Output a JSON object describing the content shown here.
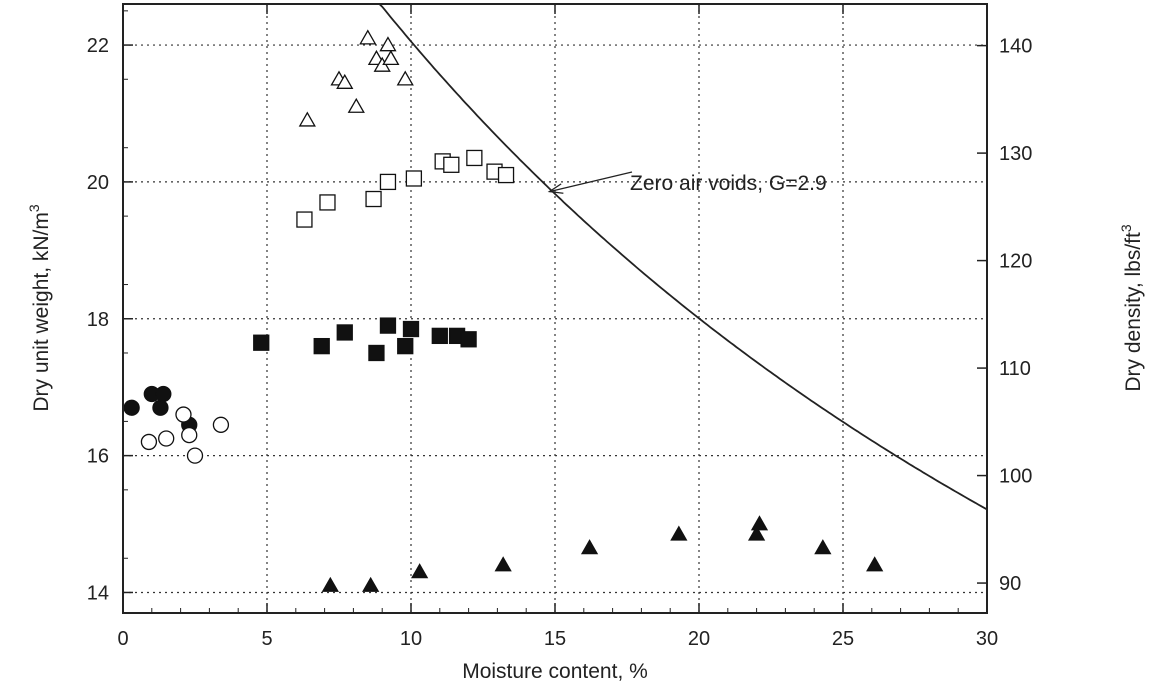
{
  "chart_data": {
    "type": "scatter",
    "title": "",
    "xlabel": "Moisture content, %",
    "ylabel_base": "Dry unit weight, kN/m",
    "ylabel_sup": "3",
    "y2label_base": "Dry density, lbs/ft",
    "y2label_sup": "3",
    "xlim": [
      0,
      30
    ],
    "ylim": [
      13.7,
      22.6
    ],
    "x_ticks": [
      0,
      5,
      10,
      15,
      20,
      25,
      30
    ],
    "y_ticks": [
      14,
      16,
      18,
      20,
      22
    ],
    "y2_ticks": [
      90,
      100,
      110,
      120,
      130,
      140
    ],
    "y2_conversion_factor": 6.366,
    "grid": true,
    "annotation": "Zero air voids, G=2.9",
    "annotation_arrow_target": [
      14.6,
      19.8
    ],
    "zav_curve": {
      "specific_gravity": 2.9,
      "unit_weight_water": 9.81,
      "x_range": [
        8.4,
        30
      ]
    },
    "series": [
      {
        "marker": "open-triangle",
        "points": [
          [
            6.4,
            20.9
          ],
          [
            7.5,
            21.5
          ],
          [
            7.7,
            21.45
          ],
          [
            8.1,
            21.1
          ],
          [
            8.5,
            22.1
          ],
          [
            8.8,
            21.8
          ],
          [
            9.0,
            21.7
          ],
          [
            9.2,
            22.0
          ],
          [
            9.3,
            21.8
          ],
          [
            9.8,
            21.5
          ]
        ]
      },
      {
        "marker": "open-square",
        "points": [
          [
            6.3,
            19.45
          ],
          [
            7.1,
            19.7
          ],
          [
            8.7,
            19.75
          ],
          [
            9.2,
            20.0
          ],
          [
            10.1,
            20.05
          ],
          [
            11.1,
            20.3
          ],
          [
            11.4,
            20.25
          ],
          [
            12.2,
            20.35
          ],
          [
            12.9,
            20.15
          ],
          [
            13.3,
            20.1
          ]
        ]
      },
      {
        "marker": "filled-square",
        "points": [
          [
            4.8,
            17.65
          ],
          [
            6.9,
            17.6
          ],
          [
            7.7,
            17.8
          ],
          [
            8.8,
            17.5
          ],
          [
            9.2,
            17.9
          ],
          [
            9.8,
            17.6
          ],
          [
            10.0,
            17.85
          ],
          [
            11.0,
            17.75
          ],
          [
            11.6,
            17.75
          ],
          [
            12.0,
            17.7
          ]
        ]
      },
      {
        "marker": "filled-circle",
        "points": [
          [
            0.3,
            16.7
          ],
          [
            1.0,
            16.9
          ],
          [
            1.3,
            16.7
          ],
          [
            1.4,
            16.9
          ],
          [
            2.3,
            16.45
          ]
        ]
      },
      {
        "marker": "open-circle",
        "points": [
          [
            0.9,
            16.2
          ],
          [
            1.5,
            16.25
          ],
          [
            2.1,
            16.6
          ],
          [
            2.3,
            16.3
          ],
          [
            2.5,
            16.0
          ],
          [
            3.4,
            16.45
          ]
        ]
      },
      {
        "marker": "filled-triangle",
        "points": [
          [
            7.2,
            14.1
          ],
          [
            8.6,
            14.1
          ],
          [
            10.3,
            14.3
          ],
          [
            13.2,
            14.4
          ],
          [
            16.2,
            14.65
          ],
          [
            19.3,
            14.85
          ],
          [
            22.0,
            14.85
          ],
          [
            22.1,
            15.0
          ],
          [
            24.3,
            14.65
          ],
          [
            26.1,
            14.4
          ]
        ]
      }
    ]
  }
}
